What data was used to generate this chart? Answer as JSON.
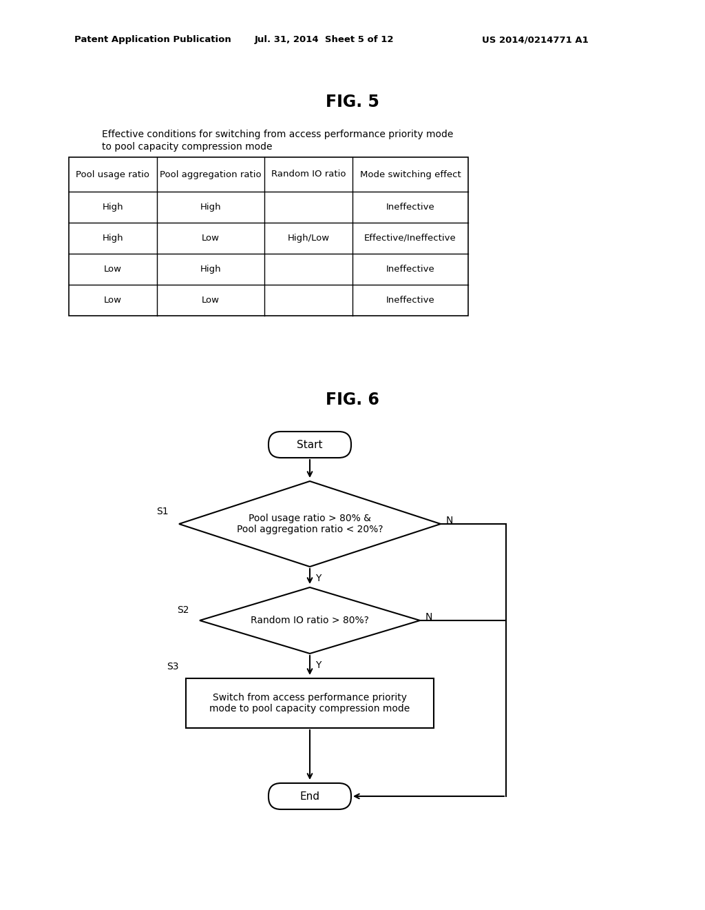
{
  "bg_color": "#ffffff",
  "header_text": "Patent Application Publication",
  "header_date": "Jul. 31, 2014  Sheet 5 of 12",
  "header_patent": "US 2014/0214771 A1",
  "fig5_title": "FIG. 5",
  "fig5_caption_line1": "Effective conditions for switching from access performance priority mode",
  "fig5_caption_line2": "to pool capacity compression mode",
  "table_headers": [
    "Pool usage ratio",
    "Pool aggregation ratio",
    "Random IO ratio",
    "Mode switching effect"
  ],
  "table_rows": [
    [
      "High",
      "High",
      "",
      "Ineffective"
    ],
    [
      "High",
      "Low",
      "High/Low",
      "Effective/Ineffective"
    ],
    [
      "Low",
      "High",
      "",
      "Ineffective"
    ],
    [
      "Low",
      "Low",
      "",
      "Ineffective"
    ]
  ],
  "fig6_title": "FIG. 6",
  "flowchart": {
    "start_label": "Start",
    "end_label": "End",
    "diamond1_label": "Pool usage ratio > 80% &\nPool aggregation ratio < 20%?",
    "diamond2_label": "Random IO ratio > 80%?",
    "rect_label": "Switch from access performance priority\nmode to pool capacity compression mode",
    "s1_label": "S1",
    "s2_label": "S2",
    "s3_label": "S3",
    "yes_label": "Y",
    "no_label": "N"
  }
}
